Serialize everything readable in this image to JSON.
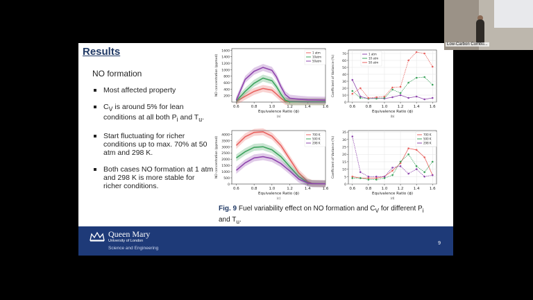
{
  "slide": {
    "title": "Results",
    "subtitle": "NO formation",
    "bullets": [
      {
        "label": "Most affected property"
      },
      {
        "pre": "C",
        "sub1": "V",
        "mid": " is around 5% for lean conditions at all both P",
        "sub2": "i",
        "mid2": " and T",
        "sub3": "u",
        "post": "."
      },
      {
        "label": "Start fluctuating for richer conditions up to max. 70% at 50 atm and 298 K."
      },
      {
        "label": "Both cases NO formation at 1 atm and 298 K is more stable for richer conditions."
      }
    ],
    "caption": {
      "fig_label": "Fig. 9",
      "text": " Fuel variability effect on NO formation and C",
      "sub_v": "V",
      "text2": " for different P",
      "sub_i": "i",
      "text3": " and T",
      "sub_u": "u",
      "text4": "."
    },
    "footer": {
      "university": "Queen Mary",
      "university_sub": "University of London",
      "school": "Science and Engineering",
      "page_number": "9"
    }
  },
  "webcam": {
    "label": "Low-Carbon Combu..."
  },
  "chart_data": [
    {
      "type": "line",
      "title": "",
      "panel": "(a)",
      "xlabel": "Equivalence Ratio (ϕ)",
      "ylabel": "NO concentration (ppmvd)",
      "x_ticks": [
        "0.6",
        "0.8",
        "1.0",
        "1.2",
        "1.4",
        "1.6"
      ],
      "y_ticks": [
        "200",
        "400",
        "600",
        "800",
        "1000",
        "1200",
        "1400",
        "1600"
      ],
      "xlim": [
        0.55,
        1.6
      ],
      "ylim": [
        0,
        1650
      ],
      "legend": "top-right",
      "x": [
        0.6,
        0.7,
        0.8,
        0.9,
        1.0,
        1.05,
        1.1,
        1.15,
        1.2,
        1.3,
        1.4,
        1.6
      ],
      "series": [
        {
          "name": "1 atm",
          "color": "#e8625f",
          "values": [
            20,
            180,
            330,
            420,
            370,
            250,
            120,
            20,
            10,
            10,
            10,
            10
          ]
        },
        {
          "name": "10atm",
          "color": "#3da35d",
          "values": [
            30,
            330,
            580,
            740,
            660,
            480,
            250,
            60,
            10,
            10,
            10,
            10
          ]
        },
        {
          "name": "50atm",
          "color": "#8e44ad",
          "values": [
            60,
            700,
            950,
            1070,
            980,
            780,
            480,
            230,
            120,
            90,
            70,
            60
          ]
        }
      ]
    },
    {
      "type": "line",
      "title": "",
      "panel": "(b)",
      "xlabel": "Equivalence Ratio (ϕ)",
      "ylabel": "Coefficient of Variance (%)",
      "x_ticks": [
        "0.6",
        "0.8",
        "1.0",
        "1.2",
        "1.4",
        "1.6"
      ],
      "y_ticks": [
        "0",
        "10",
        "20",
        "30",
        "40",
        "50",
        "60",
        "70"
      ],
      "xlim": [
        0.55,
        1.65
      ],
      "ylim": [
        0,
        75
      ],
      "legend": "top-left",
      "x": [
        0.6,
        0.7,
        0.8,
        0.9,
        1.0,
        1.1,
        1.2,
        1.3,
        1.4,
        1.5,
        1.6
      ],
      "series": [
        {
          "name": "1 atm",
          "color": "#8e44ad",
          "values": [
            32,
            8,
            5,
            6,
            5,
            7,
            10,
            6,
            8,
            4,
            6
          ]
        },
        {
          "name": "10 atm",
          "color": "#3da35d",
          "values": [
            16,
            6,
            5,
            5,
            6,
            18,
            13,
            28,
            35,
            36,
            25
          ]
        },
        {
          "name": "50 atm",
          "color": "#e8625f",
          "values": [
            12,
            20,
            6,
            7,
            8,
            21,
            22,
            60,
            72,
            70,
            51
          ]
        }
      ]
    },
    {
      "type": "line",
      "title": "",
      "panel": "(c)",
      "xlabel": "Equivalence Ratio (ϕ)",
      "ylabel": "NO concentration (ppmvd)",
      "x_ticks": [
        "0.6",
        "0.8",
        "1.0",
        "1.2",
        "1.4",
        "1.6"
      ],
      "y_ticks": [
        "0",
        "500",
        "1000",
        "1500",
        "2000",
        "2500",
        "3000",
        "3500",
        "4000"
      ],
      "xlim": [
        0.55,
        1.6
      ],
      "ylim": [
        0,
        4300
      ],
      "legend": "top-right",
      "x": [
        0.6,
        0.7,
        0.8,
        0.9,
        1.0,
        1.1,
        1.2,
        1.3,
        1.4,
        1.45,
        1.6
      ],
      "series": [
        {
          "name": "700 K",
          "color": "#e8625f",
          "values": [
            3100,
            3800,
            4150,
            4200,
            3850,
            3100,
            2000,
            900,
            200,
            50,
            20
          ]
        },
        {
          "name": "500 K",
          "color": "#3da35d",
          "values": [
            2100,
            2600,
            2950,
            3000,
            2750,
            2200,
            1400,
            600,
            120,
            40,
            20
          ]
        },
        {
          "name": "298 K",
          "color": "#8e44ad",
          "values": [
            1100,
            1700,
            2100,
            2200,
            2050,
            1650,
            1050,
            400,
            80,
            30,
            20
          ]
        }
      ]
    },
    {
      "type": "line",
      "title": "",
      "panel": "(d)",
      "xlabel": "Equivalence Ratio (ϕ)",
      "ylabel": "Coefficient of Variance (%)",
      "x_ticks": [
        "0.6",
        "0.8",
        "1.0",
        "1.2",
        "1.4",
        "1.6"
      ],
      "y_ticks": [
        "0",
        "5",
        "10",
        "15",
        "20",
        "25",
        "30",
        "35"
      ],
      "xlim": [
        0.55,
        1.65
      ],
      "ylim": [
        0,
        36
      ],
      "legend": "top-right",
      "x": [
        0.6,
        0.7,
        0.8,
        0.9,
        1.0,
        1.1,
        1.2,
        1.3,
        1.4,
        1.5,
        1.6
      ],
      "series": [
        {
          "name": "700 K",
          "color": "#e8625f",
          "values": [
            5,
            4,
            4,
            4,
            5,
            9,
            14,
            24,
            23,
            18,
            6
          ]
        },
        {
          "name": "500 K",
          "color": "#3da35d",
          "values": [
            4,
            4,
            3,
            3,
            4,
            6,
            15,
            20,
            12,
            8,
            15
          ]
        },
        {
          "name": "298 K",
          "color": "#8e44ad",
          "values": [
            32,
            8,
            5,
            5,
            5,
            11,
            12,
            7,
            10,
            5,
            6
          ]
        }
      ]
    }
  ]
}
